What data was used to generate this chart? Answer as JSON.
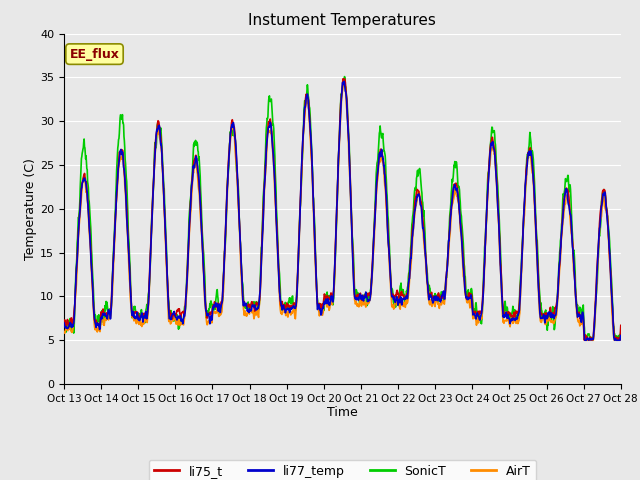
{
  "title": "Instument Temperatures",
  "xlabel": "Time",
  "ylabel": "Temperature (C)",
  "ylim": [
    0,
    40
  ],
  "xlim": [
    0,
    360
  ],
  "xtick_positions": [
    0,
    24,
    48,
    72,
    96,
    120,
    144,
    168,
    192,
    216,
    240,
    264,
    288,
    312,
    336,
    360
  ],
  "xtick_labels": [
    "Oct 13",
    "Oct 14",
    "Oct 15",
    "Oct 16",
    "Oct 17",
    "Oct 18",
    "Oct 19",
    "Oct 20",
    "Oct 21",
    "Oct 22",
    "Oct 23",
    "Oct 24",
    "Oct 25",
    "Oct 26",
    "Oct 27",
    "Oct 28"
  ],
  "annotation_text": "EE_flux",
  "annotation_color": "#8B0000",
  "annotation_bg": "#FFFFA0",
  "annotation_border": "#8B8B00",
  "bg_color": "#E8E8E8",
  "fig_bg": "#E8E8E8",
  "grid_color": "#FFFFFF",
  "line_colors": {
    "li75_t": "#CC0000",
    "li77_temp": "#0000CC",
    "SonicT": "#00CC00",
    "AirT": "#FF8C00"
  },
  "line_width": 1.2,
  "day_min_temps": [
    7,
    8,
    8,
    8,
    9,
    9,
    9,
    10,
    10,
    10,
    10,
    8,
    8,
    8,
    5,
    6
  ],
  "day_max_temps": [
    24,
    27,
    30,
    26,
    30,
    30,
    33,
    35,
    27,
    22,
    23,
    28,
    27,
    22,
    22,
    21
  ],
  "sonic_extra": [
    3,
    4,
    0,
    2,
    0,
    3,
    0,
    0,
    2,
    2,
    2,
    1,
    1,
    2,
    0,
    1
  ]
}
